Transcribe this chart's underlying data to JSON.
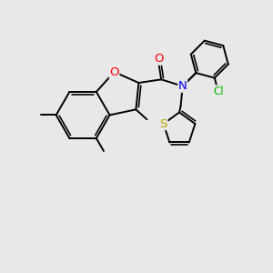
{
  "bg_color": "#e8e8e8",
  "bond_color": "#000000",
  "bond_width": 1.4,
  "atom_colors": {
    "O": "#ff0000",
    "N": "#0000ff",
    "S": "#bbaa00",
    "Cl": "#00bb00",
    "C": "#000000"
  },
  "font_size": 8.5,
  "fig_size": [
    3.0,
    3.0
  ],
  "dpi": 100
}
